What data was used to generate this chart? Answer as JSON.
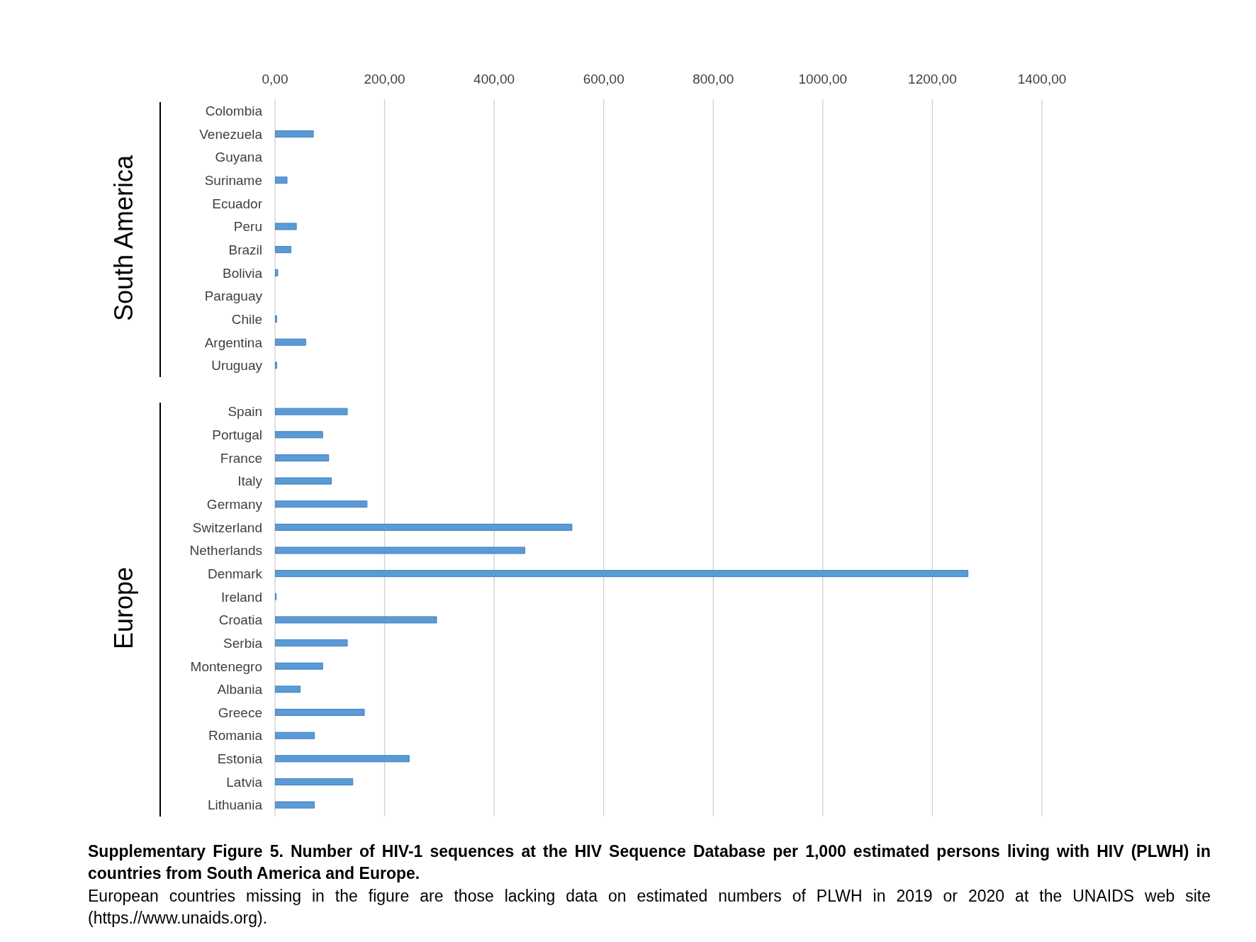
{
  "chart_data": {
    "type": "bar",
    "orientation": "horizontal",
    "title": "Supplementary Figure 5. Number of HIV-1 sequences at the HIV Sequence Database per 1,000 estimated persons living with HIV (PLWH) in countries from South America and Europe.",
    "annotations": [
      "South America",
      "Europe",
      "European countries missing in the figure are those lacking data on estimated numbers of PLWH in 2019 or 2020 at the UNAIDS web site (https.//www.unaids.org)."
    ],
    "categories": [
      "Colombia",
      "Venezuela",
      "Guyana",
      "Suriname",
      "Ecuador",
      "Peru",
      "Brazil",
      "Bolivia",
      "Paraguay",
      "Chile",
      "Argentina",
      "Uruguay",
      null,
      "Spain",
      "Portugal",
      "France",
      "Italy",
      "Germany",
      "Switzerland",
      "Netherlands",
      "Denmark",
      "Ireland",
      "Croatia",
      "Serbia",
      "Montenegro",
      "Albania",
      "Greece",
      "Romania",
      "Estonia",
      "Latvia",
      "Lithuania"
    ],
    "values": [
      null,
      70,
      null,
      22,
      null,
      39,
      29,
      5,
      null,
      3,
      56,
      3,
      null,
      132,
      87,
      98,
      103,
      168,
      542,
      456,
      1265,
      2,
      295,
      132,
      87,
      46,
      163,
      72,
      245,
      142,
      72
    ],
    "color": "#5b9bd5",
    "xlim": [
      0,
      1400
    ],
    "xticks": [
      {
        "value": 0,
        "label": "0,00"
      },
      {
        "value": 200,
        "label": "200,00"
      },
      {
        "value": 400,
        "label": "400,00"
      },
      {
        "value": 600,
        "label": "600,00"
      },
      {
        "value": 800,
        "label": "800,00"
      },
      {
        "value": 1000,
        "label": "1000,00"
      },
      {
        "value": 1200,
        "label": "1200,00"
      },
      {
        "value": 1400,
        "label": "1400,00"
      }
    ],
    "grid": "x"
  }
}
